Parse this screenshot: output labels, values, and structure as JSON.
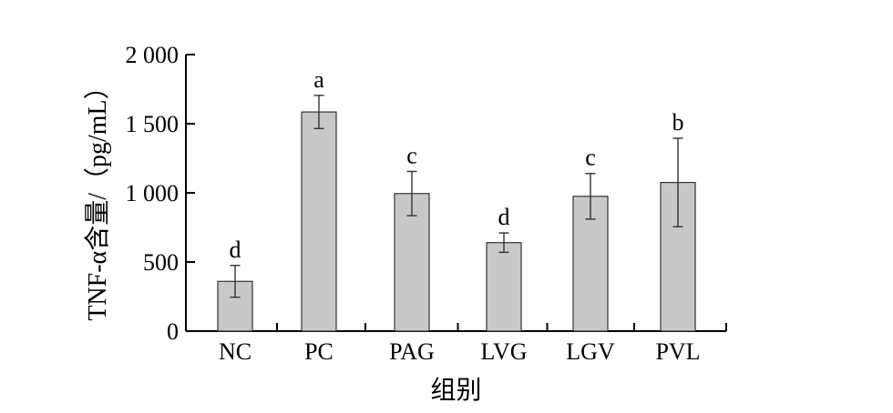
{
  "chart_data": {
    "type": "bar",
    "categories": [
      "NC",
      "PC",
      "PAG",
      "LVG",
      "LGV",
      "PVL"
    ],
    "values": [
      360,
      1585,
      995,
      640,
      975,
      1075
    ],
    "errors": [
      115,
      120,
      160,
      70,
      165,
      320
    ],
    "significance": [
      "d",
      "a",
      "c",
      "d",
      "c",
      "b"
    ],
    "xlabel": "组别",
    "ylabel": "TNF-α含量/（pg/mL）",
    "ylim": [
      0,
      2000
    ],
    "yticks": [
      0,
      500,
      1000,
      1500,
      2000
    ],
    "ytick_labels": [
      "0",
      "500",
      "1 000",
      "1 500",
      "2 000"
    ],
    "grid": false,
    "colors": {
      "bar_fill": "#c8c8c8",
      "bar_stroke": "#333333"
    }
  }
}
